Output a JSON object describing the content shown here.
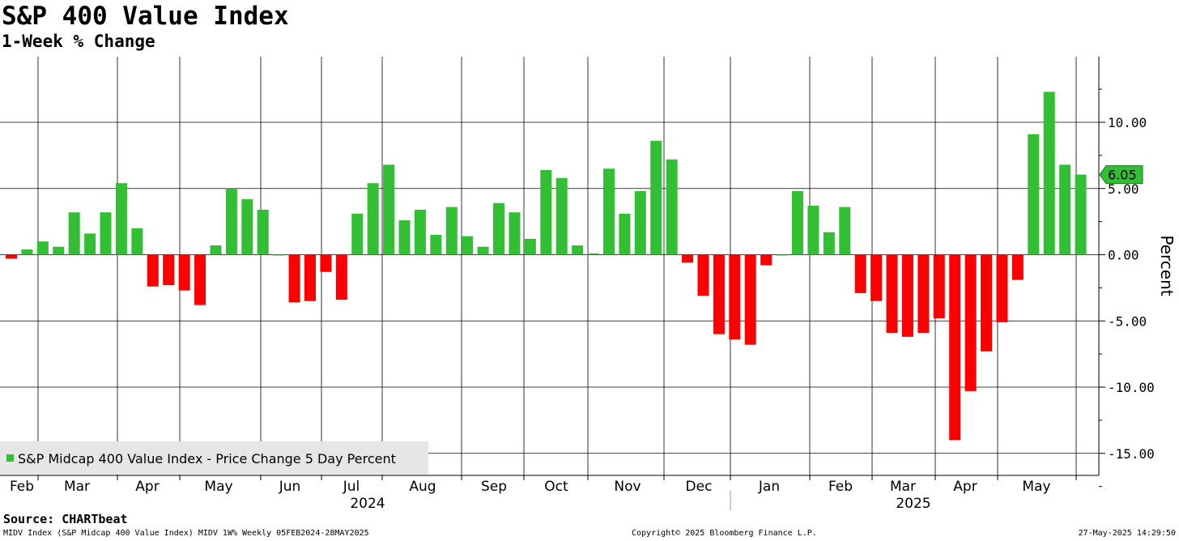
{
  "header": {
    "title": "S&P 400 Value Index",
    "subtitle": "1-Week % Change"
  },
  "footer": {
    "source": "Source: CHARTbeat",
    "left": "MIDV Index (S&P Midcap 400 Value Index) MIDV 1W% Weekly 05FEB2024-28MAY2025",
    "center": "Copyright© 2025 Bloomberg Finance L.P.",
    "right": "27-May-2025 14:29:50"
  },
  "colors": {
    "positive": "#33bf33",
    "negative": "#ff0000",
    "grid": "#000000",
    "legend_bg": "#e6e6e6",
    "last_label_bg": "#33bf33"
  },
  "chart_data": {
    "type": "bar",
    "title": "S&P 400 Value Index",
    "subtitle": "1-Week % Change",
    "ylabel": "Percent",
    "ylim": [
      -17.5,
      15
    ],
    "yticks": [
      -15,
      -10,
      -5,
      0,
      5,
      10
    ],
    "ytick_labels": [
      "-15.00",
      "-10.00",
      "-5.00",
      "0.00",
      "5.00",
      "10.00"
    ],
    "grid": true,
    "legend": {
      "label": "S&P Midcap 400 Value Index - Price Change 5 Day Percent",
      "position": "bottom-left"
    },
    "month_labels": [
      "Feb",
      "Mar",
      "Apr",
      "May",
      "Jun",
      "Jul",
      "Aug",
      "Sep",
      "Oct",
      "Nov",
      "Dec",
      "Jan",
      "Feb",
      "Mar",
      "Apr",
      "May"
    ],
    "year_labels": [
      "2024",
      "2025"
    ],
    "last_value_label": "6.05",
    "series": [
      {
        "name": "S&P Midcap 400 Value Index - Price Change 5 Day Percent",
        "values": [
          -0.3,
          0.4,
          1.0,
          0.6,
          3.2,
          1.6,
          3.2,
          5.4,
          2.0,
          -2.4,
          -2.3,
          -2.7,
          -3.8,
          0.7,
          5.0,
          4.2,
          3.4,
          0.0,
          -3.6,
          -3.5,
          -1.3,
          -3.4,
          3.1,
          5.4,
          6.8,
          2.6,
          3.4,
          1.5,
          3.6,
          1.4,
          0.6,
          3.9,
          3.2,
          1.2,
          6.4,
          5.8,
          0.7,
          0.1,
          6.5,
          3.1,
          4.8,
          8.6,
          7.2,
          -0.6,
          -3.1,
          -6.0,
          -6.4,
          -6.8,
          -0.8,
          0.0,
          4.8,
          3.7,
          1.7,
          3.6,
          -2.9,
          -3.5,
          -5.9,
          -6.2,
          -5.9,
          -4.8,
          -14.0,
          -10.3,
          -7.3,
          -5.1,
          -1.9,
          9.1,
          12.3,
          6.8,
          6.05
        ]
      }
    ]
  }
}
